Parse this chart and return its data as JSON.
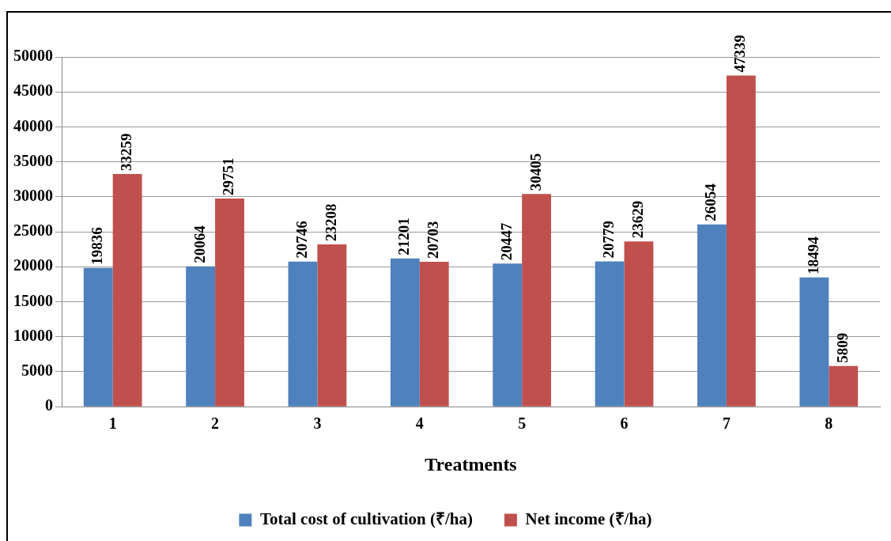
{
  "chart_data": {
    "type": "bar",
    "xlabel": "Treatments",
    "categories": [
      "1",
      "2",
      "3",
      "4",
      "5",
      "6",
      "7",
      "8"
    ],
    "series": [
      {
        "name": "Total cost of cultivation (₹/ha)",
        "color": "#4f81bd",
        "values": [
          19836,
          20064,
          20746,
          21201,
          20447,
          20779,
          26054,
          18494
        ]
      },
      {
        "name": "Net income (₹/ha)",
        "color": "#c0504d",
        "values": [
          33259,
          29751,
          23208,
          20703,
          30405,
          23629,
          47339,
          5809
        ]
      }
    ],
    "ylim": [
      0,
      50000
    ],
    "yticks": [
      0,
      5000,
      10000,
      15000,
      20000,
      25000,
      30000,
      35000,
      40000,
      45000,
      50000
    ],
    "grid": "y",
    "legend": "bottom",
    "data_labels": true
  }
}
